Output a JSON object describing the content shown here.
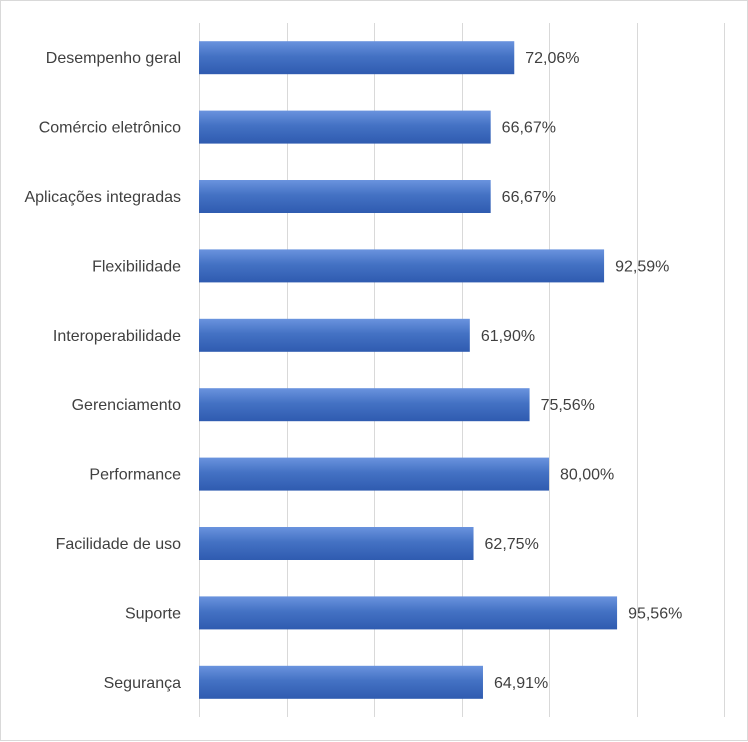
{
  "chart_data": {
    "type": "bar",
    "orientation": "horizontal",
    "categories": [
      "Desempenho geral",
      "Comércio eletrônico",
      "Aplicações integradas",
      "Flexibilidade",
      "Interoperabilidade",
      "Gerenciamento",
      "Performance",
      "Facilidade de uso",
      "Suporte",
      "Segurança"
    ],
    "values": [
      72.06,
      66.67,
      66.67,
      92.59,
      61.9,
      75.56,
      80.0,
      62.75,
      95.56,
      64.91
    ],
    "value_labels": [
      "72,06%",
      "66,67%",
      "66,67%",
      "92,59%",
      "61,90%",
      "75,56%",
      "80,00%",
      "62,75%",
      "95,56%",
      "64,91%"
    ],
    "xlim": [
      0,
      120
    ],
    "x_gridlines": [
      0,
      20,
      40,
      60,
      80,
      100,
      120
    ],
    "grid": true,
    "legend": "none",
    "bar_color": "#4472c4",
    "title": "",
    "xlabel": "",
    "ylabel": ""
  }
}
